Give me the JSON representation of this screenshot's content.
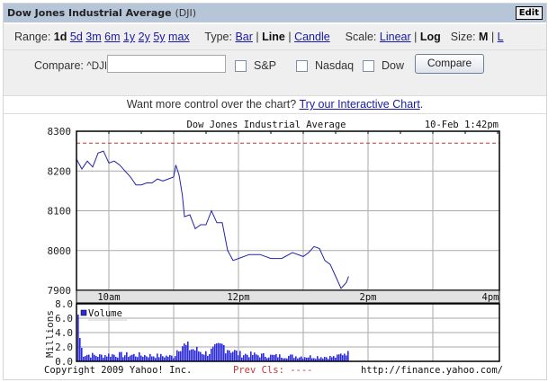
{
  "header": {
    "title": "Dow Jones Industrial Average",
    "symbol": "(DJI)",
    "edit_label": "Edit"
  },
  "options": {
    "range_label": "Range:",
    "ranges": [
      "1d",
      "5d",
      "3m",
      "6m",
      "1y",
      "2y",
      "5y",
      "max"
    ],
    "range_selected": "1d",
    "type_label": "Type:",
    "types": [
      "Bar",
      "Line",
      "Candle"
    ],
    "type_selected": "Line",
    "scale_label": "Scale:",
    "scales": [
      "Linear",
      "Log"
    ],
    "scale_selected": "Log",
    "size_label": "Size:",
    "sizes": [
      "M",
      "L"
    ],
    "size_selected": "M",
    "separator": "|"
  },
  "compare": {
    "label": "Compare:",
    "symbol": "^DJI vs",
    "input_value": "",
    "checkboxes": [
      {
        "label": "S&P",
        "checked": false
      },
      {
        "label": "Nasdaq",
        "checked": false
      },
      {
        "label": "Dow",
        "checked": false
      }
    ],
    "button_label": "Compare"
  },
  "promo": {
    "text": "Want more control over the chart?",
    "link": "Try our Interactive Chart",
    "suffix": "."
  },
  "chart_footer": {
    "copyright": "Copyright 2009 Yahoo! Inc.",
    "prev_close": "Prev Cls: ----",
    "url": "http://finance.yahoo.com/"
  },
  "colors": {
    "line": "#2222aa",
    "volume": "#2b2bd9",
    "prev_close": "#cc3333",
    "grid": "#a9a9a9",
    "header_bg": "#b7c5d9"
  },
  "chart_data": [
    {
      "type": "line",
      "title": "Dow Jones Industrial Average",
      "timestamp": "10-Feb 1:42pm",
      "xlabel": "",
      "ylabel": "",
      "x_ticks": [
        "10am",
        "12pm",
        "2pm",
        "4pm"
      ],
      "y_ticks": [
        7900,
        8000,
        8100,
        8200,
        8300
      ],
      "ylim": [
        7900,
        8300
      ],
      "x_range": [
        "9:30am",
        "4:00pm"
      ],
      "grid": true,
      "prev_close_level": 8270,
      "series": [
        {
          "name": "DJI",
          "x": [
            "9:30",
            "9:35",
            "9:40",
            "9:45",
            "9:50",
            "9:55",
            "10:00",
            "10:05",
            "10:10",
            "10:15",
            "10:20",
            "10:25",
            "10:30",
            "10:35",
            "10:40",
            "10:45",
            "10:50",
            "10:55",
            "11:00",
            "11:02",
            "11:05",
            "11:08",
            "11:10",
            "11:15",
            "11:20",
            "11:25",
            "11:30",
            "11:35",
            "11:40",
            "11:45",
            "11:50",
            "11:55",
            "12:00",
            "12:10",
            "12:20",
            "12:30",
            "12:40",
            "12:50",
            "13:00",
            "13:05",
            "13:10",
            "13:15",
            "13:20",
            "13:25",
            "13:30",
            "13:35",
            "13:40",
            "13:42"
          ],
          "values": [
            8230,
            8205,
            8225,
            8210,
            8245,
            8250,
            8220,
            8225,
            8215,
            8200,
            8185,
            8165,
            8165,
            8170,
            8170,
            8180,
            8175,
            8180,
            8185,
            8215,
            8190,
            8140,
            8085,
            8090,
            8055,
            8065,
            8065,
            8100,
            8070,
            8070,
            8000,
            7975,
            7980,
            7990,
            7990,
            7980,
            7980,
            7995,
            7985,
            7995,
            8010,
            8005,
            7975,
            7965,
            7935,
            7905,
            7920,
            7935
          ]
        }
      ]
    },
    {
      "type": "bar",
      "title": "Volume",
      "ylabel": "Millions",
      "y_ticks": [
        "0.0",
        "2.0",
        "4.0",
        "6.0",
        "8.0"
      ],
      "ylim": [
        0,
        8
      ],
      "legend": [
        "Volume"
      ],
      "series": [
        {
          "name": "Volume",
          "x": [
            "9:30",
            "9:35",
            "9:50",
            "10:00",
            "10:30",
            "11:00",
            "11:05",
            "11:10",
            "11:30",
            "11:45",
            "12:00",
            "12:30",
            "13:00",
            "13:30",
            "13:40",
            "13:42"
          ],
          "values": [
            6.5,
            1.2,
            0.9,
            1.1,
            1.0,
            0.8,
            3.0,
            2.4,
            1.3,
            2.6,
            1.2,
            0.9,
            0.8,
            0.7,
            1.7,
            0.6
          ]
        }
      ]
    }
  ]
}
